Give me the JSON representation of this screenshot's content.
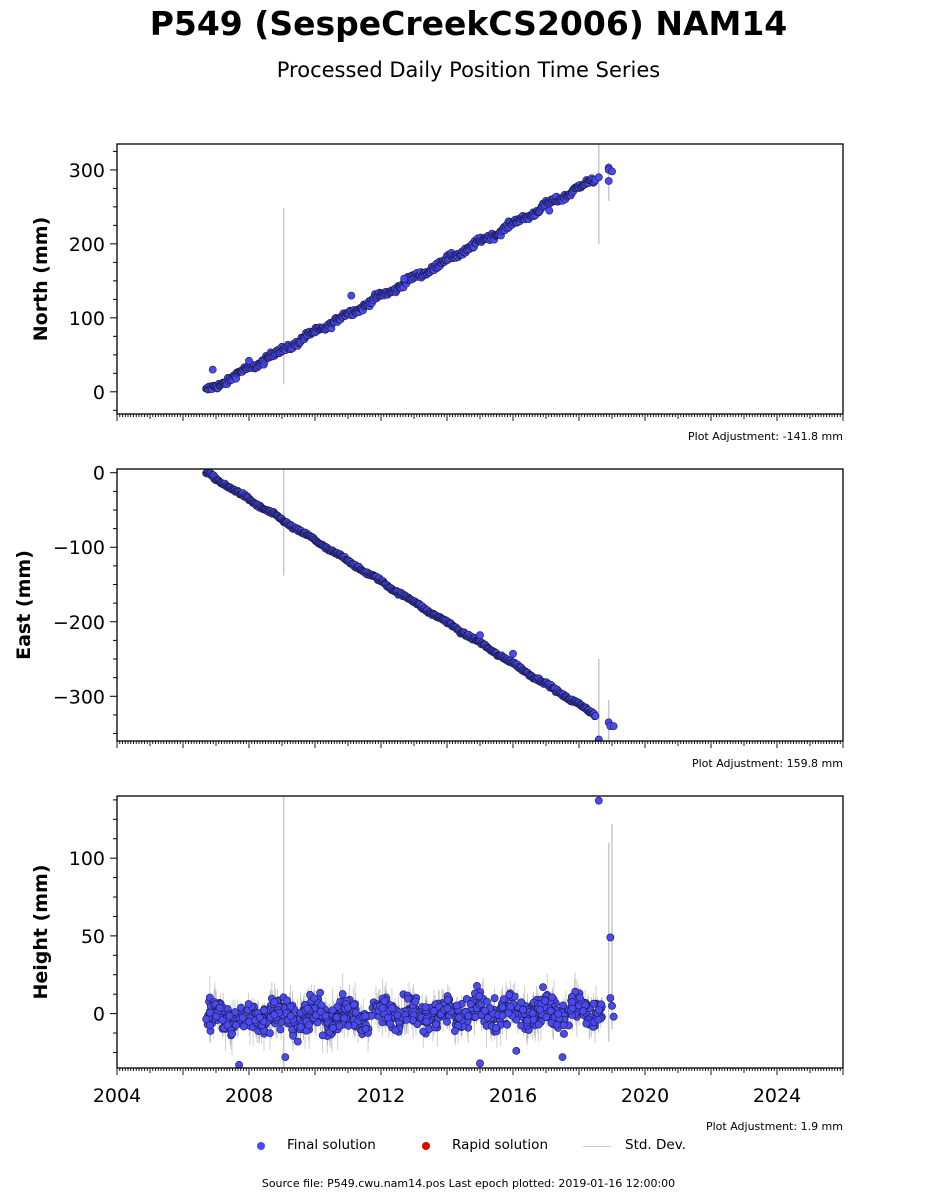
{
  "title": "P549 (SespeCreekCS2006) NAM14",
  "subtitle": "Processed Daily Position Time Series",
  "footer": "Source file: P549.cwu.nam14.pos  Last epoch plotted: 2019-01-16 12:00:00",
  "legend": [
    {
      "label": "Final solution",
      "color": "#4a4af0"
    },
    {
      "label": "Rapid solution",
      "color": "#e00000"
    },
    {
      "label": "Std. Dev.",
      "color": "#cccccc"
    }
  ],
  "colors": {
    "point_fill": "#4a4af0",
    "point_edge": "#1a1a4a",
    "errorbar": "#c8c8c8",
    "trend": "#1a1a3a"
  },
  "chart_data": [
    {
      "type": "scatter",
      "ylabel": "North (mm)",
      "adjustment": "Plot Adjustment: -141.8 mm",
      "xlim": [
        2004.0,
        2026.0
      ],
      "ylim": [
        -30,
        335
      ],
      "yticks": [
        0,
        100,
        200,
        300
      ],
      "trend": {
        "x": [
          2006.7,
          2018.5
        ],
        "y": [
          0,
          288
        ]
      },
      "scatter": 3,
      "extra_points": [
        [
          2006.9,
          30
        ],
        [
          2008.0,
          42
        ],
        [
          2011.1,
          130
        ],
        [
          2012.7,
          153
        ],
        [
          2017.1,
          245
        ],
        [
          2018.9,
          303
        ],
        [
          2018.9,
          300
        ],
        [
          2019.0,
          298
        ],
        [
          2018.9,
          285
        ],
        [
          2018.6,
          290
        ]
      ],
      "errorbars": [
        [
          2009.05,
          10,
          248
        ],
        [
          2018.6,
          200,
          335
        ],
        [
          2018.9,
          258,
          310
        ]
      ]
    },
    {
      "type": "scatter",
      "ylabel": "East (mm)",
      "adjustment": "Plot Adjustment: 159.8 mm",
      "xlim": [
        2004.0,
        2026.0
      ],
      "ylim": [
        -360,
        5
      ],
      "yticks": [
        0,
        -100,
        -200,
        -300
      ],
      "trend": {
        "x": [
          2006.7,
          2018.5
        ],
        "y": [
          0,
          -325
        ]
      },
      "scatter": 1.5,
      "extra_points": [
        [
          2018.6,
          -358
        ],
        [
          2018.9,
          -335
        ],
        [
          2018.95,
          -340
        ],
        [
          2019.05,
          -340
        ],
        [
          2015.0,
          -218
        ],
        [
          2016.0,
          -243
        ]
      ],
      "errorbars": [
        [
          2009.05,
          -138,
          5
        ],
        [
          2018.6,
          -360,
          -250
        ],
        [
          2018.9,
          -360,
          -305
        ]
      ]
    },
    {
      "type": "scatter",
      "ylabel": "Height (mm)",
      "adjustment": "Plot Adjustment: 1.9 mm",
      "xlim": [
        2004.0,
        2026.0
      ],
      "ylim": [
        -35,
        140
      ],
      "yticks": [
        0,
        50,
        100
      ],
      "xticks": [
        2004,
        2008,
        2012,
        2016,
        2020,
        2024
      ],
      "trend": null,
      "noise_range": [
        2006.7,
        2018.7
      ],
      "noise_amp": 9,
      "extra_points": [
        [
          2018.6,
          137
        ],
        [
          2018.95,
          49
        ],
        [
          2018.95,
          10
        ],
        [
          2019.0,
          5
        ],
        [
          2019.05,
          -2
        ],
        [
          2015.0,
          -32
        ],
        [
          2016.1,
          -24
        ],
        [
          2017.5,
          -28
        ],
        [
          2007.7,
          -33
        ],
        [
          2009.1,
          -28
        ]
      ],
      "errorbars": [
        [
          2009.05,
          -35,
          140
        ],
        [
          2018.9,
          -18,
          110
        ],
        [
          2019.0,
          -10,
          122
        ]
      ]
    }
  ]
}
